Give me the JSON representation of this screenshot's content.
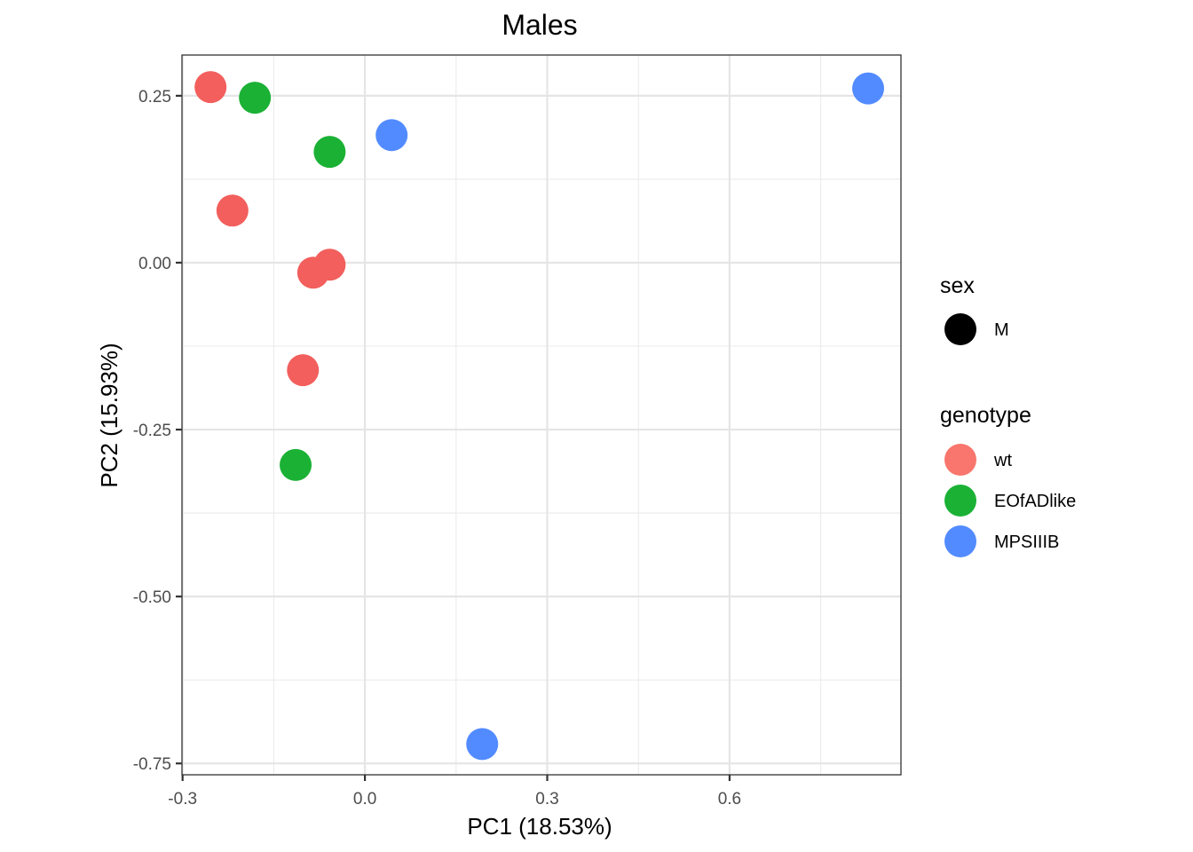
{
  "chart_data": {
    "type": "scatter",
    "title": "Males",
    "xlabel": "PC1 (18.53%)",
    "ylabel": "PC2 (15.93%)",
    "xlim": [
      -0.301,
      0.882
    ],
    "ylim": [
      -0.767,
      0.311
    ],
    "x_ticks": [
      -0.3,
      0.0,
      0.3,
      0.6
    ],
    "x_tick_labels": [
      "-0.3",
      "0.0",
      "0.3",
      "0.6"
    ],
    "y_ticks": [
      0.25,
      0.0,
      -0.25,
      -0.5,
      -0.75
    ],
    "y_tick_labels": [
      "0.25",
      "0.00",
      "-0.25",
      "-0.50",
      "-0.75"
    ],
    "x_minor": [
      -0.15,
      0.15,
      0.45,
      0.75
    ],
    "y_minor": [
      0.125,
      -0.125,
      -0.375,
      -0.625
    ],
    "grid": true,
    "legend_position": "right",
    "legends": [
      {
        "title": "sex",
        "entries": [
          {
            "label": "M",
            "color": "#000000"
          }
        ]
      },
      {
        "title": "genotype",
        "entries": [
          {
            "label": "wt",
            "color": "#F8766D"
          },
          {
            "label": "EOfADlike",
            "color": "#1BB135"
          },
          {
            "label": "MPSIIIB",
            "color": "#528BFF"
          }
        ]
      }
    ],
    "series": [
      {
        "name": "wt",
        "color": "#F25F5C",
        "points": [
          [
            -0.254,
            0.263
          ],
          [
            -0.218,
            0.078
          ],
          [
            -0.058,
            -0.003
          ],
          [
            -0.085,
            -0.015
          ],
          [
            -0.102,
            -0.161
          ]
        ]
      },
      {
        "name": "EOfADlike",
        "color": "#1BB135",
        "points": [
          [
            -0.181,
            0.247
          ],
          [
            -0.058,
            0.166
          ],
          [
            -0.114,
            -0.303
          ]
        ]
      },
      {
        "name": "MPSIIIB",
        "color": "#528BFF",
        "points": [
          [
            0.044,
            0.191
          ],
          [
            0.828,
            0.261
          ],
          [
            0.193,
            -0.721
          ]
        ]
      }
    ]
  }
}
